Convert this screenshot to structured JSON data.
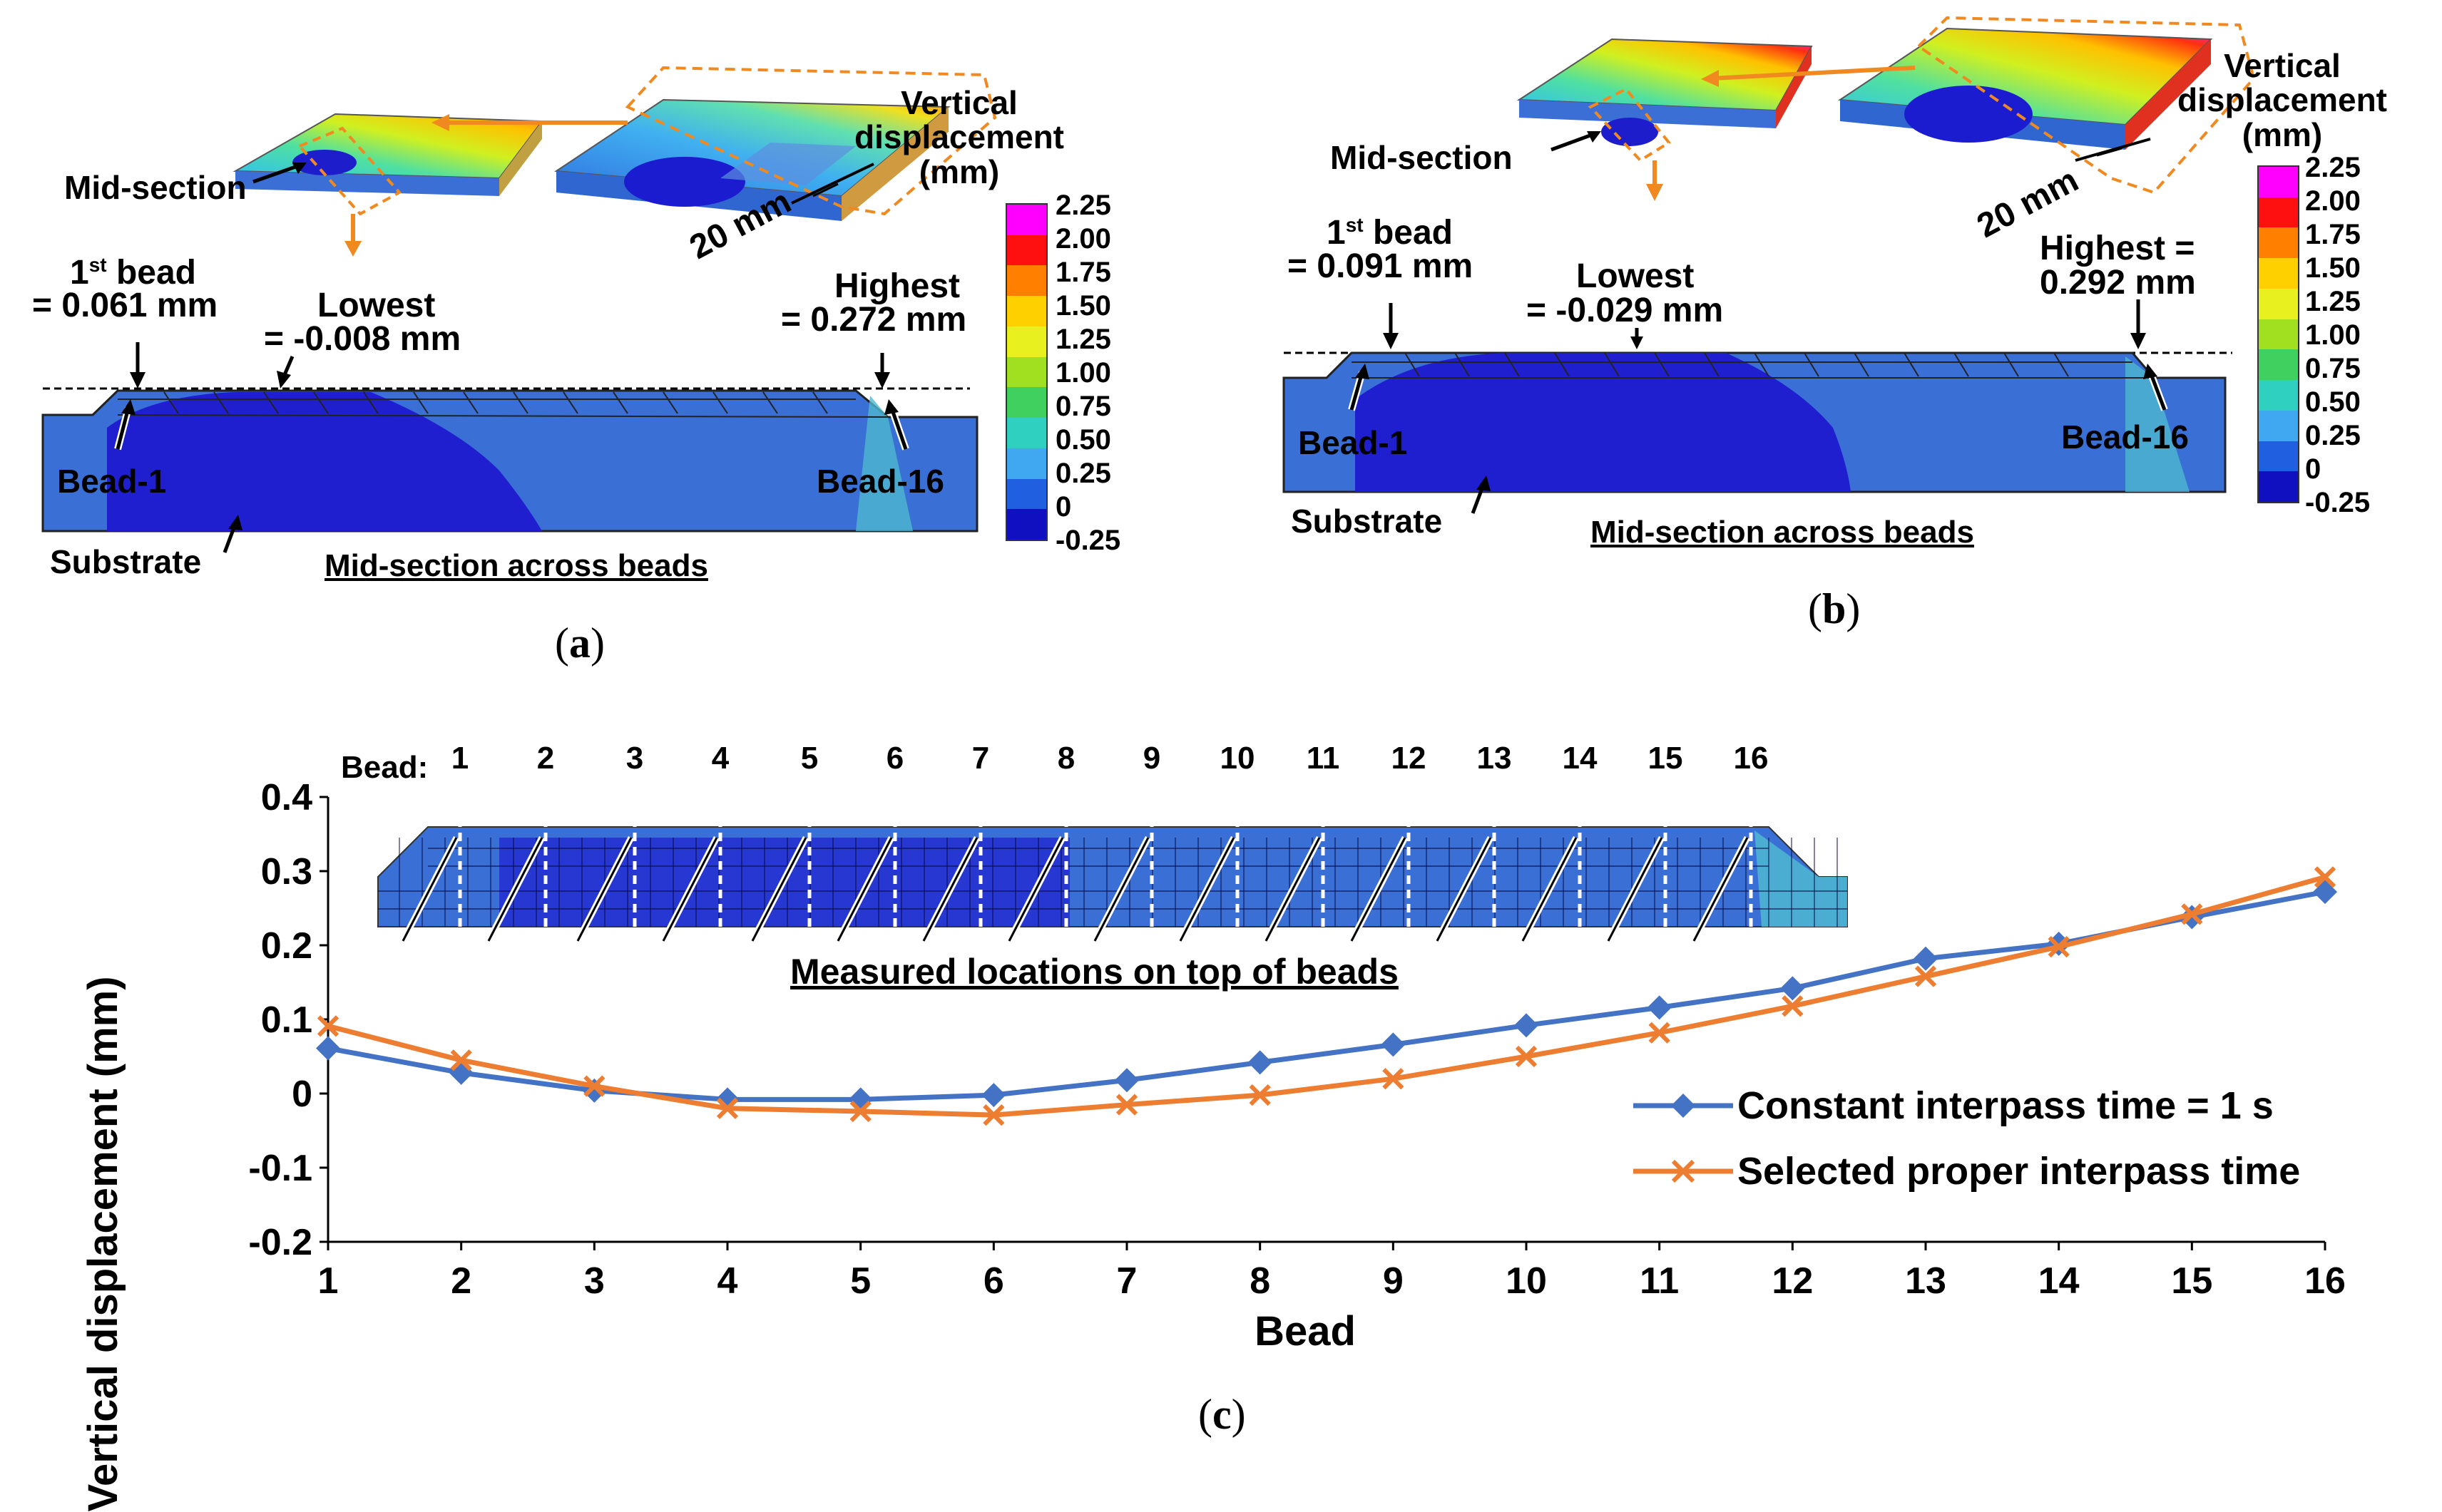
{
  "panel_a": {
    "legend_title": "Vertical displacement (mm)",
    "legend_title_lines": [
      "Vertical",
      "displacement",
      "(mm)"
    ],
    "ticks": [
      "2.25",
      "2.00",
      "1.75",
      "1.50",
      "1.25",
      "1.00",
      "0.75",
      "0.50",
      "0.25",
      "0",
      "-0.25"
    ],
    "mid_section": "Mid-section",
    "dim": "20 mm",
    "first_bead_line1": "1",
    "first_bead_sup": "st",
    "first_bead_word": " bead",
    "first_bead_value": "= 0.061 mm",
    "lowest": "Lowest",
    "lowest_value": "= -0.008 mm",
    "highest": "Highest",
    "highest_value": "= 0.272 mm",
    "bead_1": "Bead-1",
    "bead_16": "Bead-16",
    "substrate": "Substrate",
    "caption": "Mid-section across beads",
    "panel_label": "a"
  },
  "panel_b": {
    "legend_title_lines": [
      "Vertical",
      "displacement",
      "(mm)"
    ],
    "ticks": [
      "2.25",
      "2.00",
      "1.75",
      "1.50",
      "1.25",
      "1.00",
      "0.75",
      "0.50",
      "0.25",
      "0",
      "-0.25"
    ],
    "mid_section": "Mid-section",
    "dim": "20 mm",
    "first_bead_line1": "1",
    "first_bead_sup": "st",
    "first_bead_word": " bead",
    "first_bead_value": "= 0.091 mm",
    "lowest": "Lowest",
    "lowest_value": "= -0.029 mm",
    "highest": "Highest =",
    "highest_value": "0.292 mm",
    "bead_1": "Bead-1",
    "bead_16": "Bead-16",
    "substrate": "Substrate",
    "caption": "Mid-section across beads",
    "panel_label": "b"
  },
  "panel_c": {
    "bead_label": "Bead:",
    "inset_caption": "Measured locations on top of beads",
    "panel_label": "c"
  },
  "colorbar_colors": [
    "#ff00ff",
    "#ff1010",
    "#ff8000",
    "#ffd000",
    "#e8f020",
    "#a0e020",
    "#40d060",
    "#30d0c0",
    "#40a8f0",
    "#2060e0",
    "#1010c0"
  ],
  "chart_data": {
    "type": "line",
    "title": "",
    "xlabel": "Bead",
    "ylabel": "Vertical displacement (mm)",
    "x": [
      1,
      2,
      3,
      4,
      5,
      6,
      7,
      8,
      9,
      10,
      11,
      12,
      13,
      14,
      15,
      16
    ],
    "xticks": [
      "1",
      "2",
      "3",
      "4",
      "5",
      "6",
      "7",
      "8",
      "9",
      "10",
      "11",
      "12",
      "13",
      "14",
      "15",
      "16"
    ],
    "yticks": [
      "0.4",
      "0.3",
      "0.2",
      "0.1",
      "0",
      "-0.1",
      "-0.2"
    ],
    "ylim": [
      -0.2,
      0.4
    ],
    "legend_position": "bottom-right",
    "series": [
      {
        "name": "Constant interpass time = 1 s",
        "color": "#4472c4",
        "marker": "diamond",
        "values": [
          0.061,
          0.028,
          0.004,
          -0.008,
          -0.008,
          -0.002,
          0.018,
          0.042,
          0.066,
          0.092,
          0.116,
          0.142,
          0.182,
          0.202,
          0.238,
          0.272
        ]
      },
      {
        "name": "Selected proper interpass time",
        "color": "#ed7d31",
        "marker": "x",
        "values": [
          0.091,
          0.045,
          0.01,
          -0.02,
          -0.024,
          -0.029,
          -0.015,
          -0.002,
          0.02,
          0.05,
          0.082,
          0.118,
          0.158,
          0.198,
          0.242,
          0.292
        ]
      }
    ]
  }
}
